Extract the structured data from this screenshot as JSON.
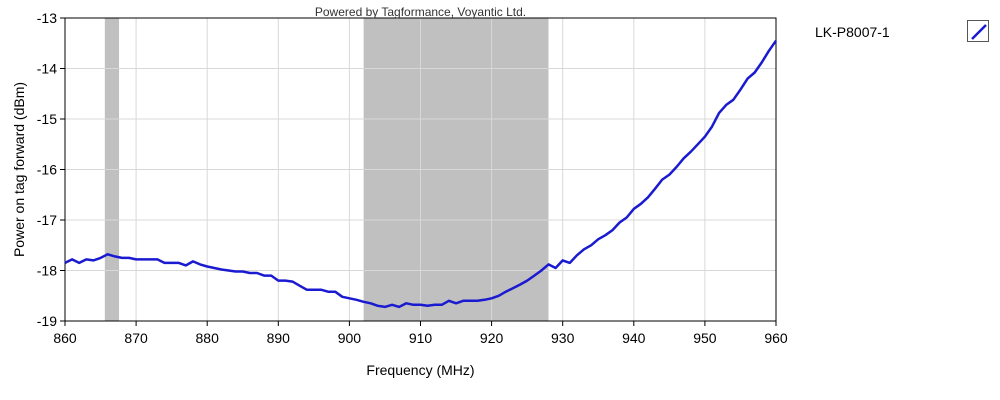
{
  "chart_data": {
    "type": "line",
    "watermark": "Powered by Tagformance, Voyantic Ltd.",
    "xlabel": "Frequency (MHz)",
    "ylabel": "Power on tag forward (dBm)",
    "xlim": [
      860,
      960
    ],
    "ylim": [
      -19,
      -13
    ],
    "x_ticks": [
      860,
      870,
      880,
      890,
      900,
      910,
      920,
      930,
      940,
      950,
      960
    ],
    "y_ticks": [
      -19,
      -18,
      -17,
      -16,
      -15,
      -14,
      -13
    ],
    "grid": true,
    "legend_position": "right",
    "shaded_bands": [
      {
        "x_start": 865.6,
        "x_end": 867.6
      },
      {
        "x_start": 902,
        "x_end": 928
      }
    ],
    "series": [
      {
        "name": "LK-P8007-1",
        "color": "#1a1ad0",
        "x": [
          860,
          861,
          862,
          863,
          864,
          865,
          866,
          867,
          868,
          869,
          870,
          871,
          872,
          873,
          874,
          875,
          876,
          877,
          878,
          879,
          880,
          881,
          882,
          883,
          884,
          885,
          886,
          887,
          888,
          889,
          890,
          891,
          892,
          893,
          894,
          895,
          896,
          897,
          898,
          899,
          900,
          901,
          902,
          903,
          904,
          905,
          906,
          907,
          908,
          909,
          910,
          911,
          912,
          913,
          914,
          915,
          916,
          917,
          918,
          919,
          920,
          921,
          922,
          923,
          924,
          925,
          926,
          927,
          928,
          929,
          930,
          931,
          932,
          933,
          934,
          935,
          936,
          937,
          938,
          939,
          940,
          941,
          942,
          943,
          944,
          945,
          946,
          947,
          948,
          949,
          950,
          951,
          952,
          953,
          954,
          955,
          956,
          957,
          958,
          959,
          960
        ],
        "y": [
          -17.85,
          -17.78,
          -17.85,
          -17.78,
          -17.8,
          -17.75,
          -17.68,
          -17.72,
          -17.75,
          -17.75,
          -17.78,
          -17.78,
          -17.78,
          -17.78,
          -17.85,
          -17.85,
          -17.85,
          -17.9,
          -17.82,
          -17.88,
          -17.92,
          -17.95,
          -17.98,
          -18.0,
          -18.02,
          -18.02,
          -18.05,
          -18.05,
          -18.1,
          -18.1,
          -18.2,
          -18.2,
          -18.22,
          -18.3,
          -18.38,
          -18.38,
          -18.38,
          -18.42,
          -18.42,
          -18.52,
          -18.55,
          -18.58,
          -18.62,
          -18.65,
          -18.7,
          -18.72,
          -18.68,
          -18.72,
          -18.65,
          -18.68,
          -18.68,
          -18.7,
          -18.68,
          -18.68,
          -18.6,
          -18.65,
          -18.6,
          -18.6,
          -18.6,
          -18.58,
          -18.55,
          -18.5,
          -18.42,
          -18.35,
          -18.28,
          -18.2,
          -18.1,
          -18.0,
          -17.88,
          -17.95,
          -17.8,
          -17.85,
          -17.7,
          -17.58,
          -17.5,
          -17.38,
          -17.3,
          -17.2,
          -17.05,
          -16.95,
          -16.78,
          -16.68,
          -16.55,
          -16.38,
          -16.2,
          -16.1,
          -15.95,
          -15.78,
          -15.65,
          -15.5,
          -15.35,
          -15.15,
          -14.88,
          -14.72,
          -14.62,
          -14.42,
          -14.2,
          -14.08,
          -13.88,
          -13.65,
          -13.45
        ]
      }
    ]
  }
}
